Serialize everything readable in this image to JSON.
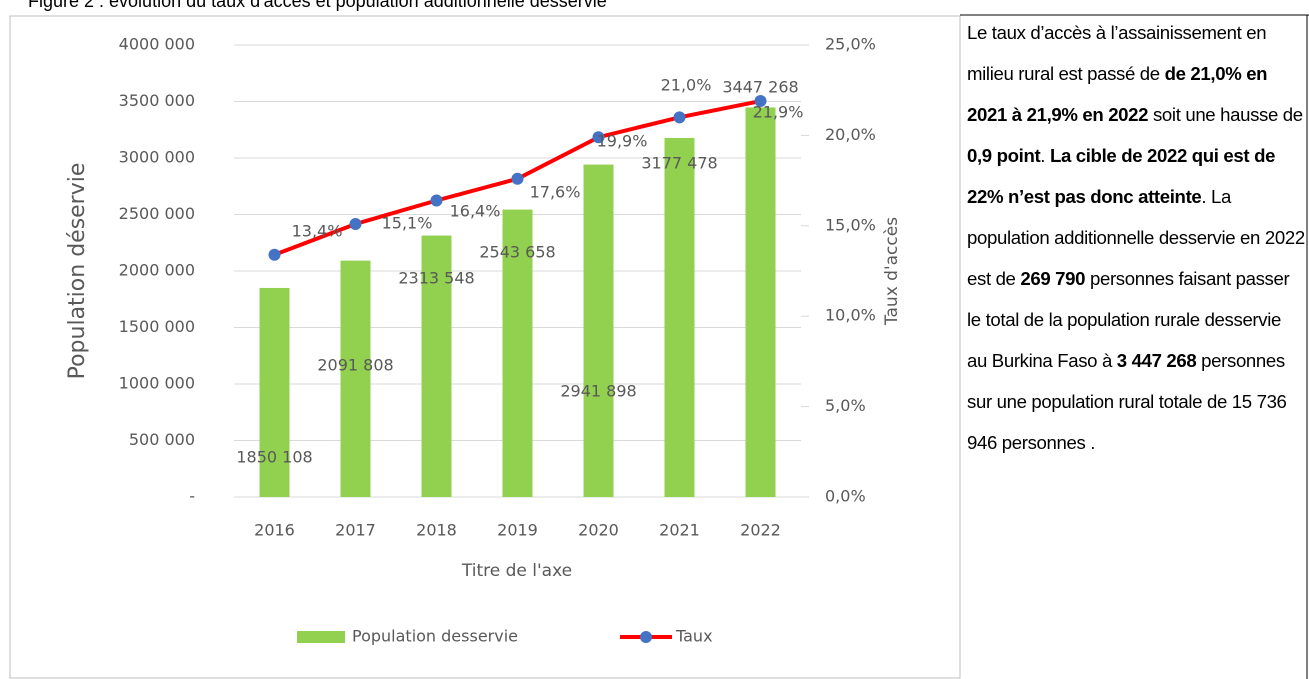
{
  "caption": "Figure 2 : évolution du taux d'accès et population additionnelle desservie",
  "chart_data": {
    "type": "bar-line",
    "y_label": "Population déservie",
    "y2_label": "Taux d'accès",
    "x_label": "Titre de l'axe",
    "categories": [
      "2016",
      "2017",
      "2018",
      "2019",
      "2020",
      "2021",
      "2022"
    ],
    "series": [
      {
        "name": "Population desservie",
        "type": "bar",
        "color": "#92d050",
        "values": [
          1850108,
          2091808,
          2313548,
          2543658,
          2941898,
          3177478,
          3447268
        ],
        "value_labels": [
          "1850 108",
          "2091 808",
          "2313 548",
          "2543 658",
          "2941 898",
          "3177 478",
          "3447 268"
        ]
      },
      {
        "name": "Taux",
        "type": "line",
        "axis": "y2",
        "color": "#ff0000",
        "marker_color": "#4472c4",
        "values": [
          13.4,
          15.1,
          16.4,
          17.6,
          19.9,
          21.0,
          21.9
        ],
        "value_labels": [
          "13,4%",
          "15,1%",
          "16,4%",
          "17,6%",
          "19,9%",
          "21,0%",
          "21,9%"
        ]
      }
    ],
    "ylim": [
      0,
      4000000
    ],
    "yticks": [
      {
        "value": 0,
        "label": "-"
      },
      {
        "value": 500000,
        "label": "500 000"
      },
      {
        "value": 1000000,
        "label": "1000 000"
      },
      {
        "value": 1500000,
        "label": "1500 000"
      },
      {
        "value": 2000000,
        "label": "2000 000"
      },
      {
        "value": 2500000,
        "label": "2500 000"
      },
      {
        "value": 3000000,
        "label": "3000 000"
      },
      {
        "value": 3500000,
        "label": "3500 000"
      },
      {
        "value": 4000000,
        "label": "4000 000"
      }
    ],
    "y2lim": [
      0,
      25
    ],
    "y2ticks": [
      {
        "value": 0,
        "label": "0,0%"
      },
      {
        "value": 5,
        "label": "5,0%"
      },
      {
        "value": 10,
        "label": "10,0%"
      },
      {
        "value": 15,
        "label": "15,0%"
      },
      {
        "value": 20,
        "label": "20,0%"
      },
      {
        "value": 25,
        "label": "25,0%"
      }
    ],
    "grid": true,
    "legend": "bottom"
  },
  "text": {
    "paragraph": [
      {
        "text": "Le taux d’accès à l’assainissement en milieu rural est passé de ",
        "bold": false
      },
      {
        "text": "de 21,0% en 2021 à 21,9% en 2022",
        "bold": true
      },
      {
        "text": " soit une hausse de ",
        "bold": false
      },
      {
        "text": "0,9 point",
        "bold": true
      },
      {
        "text": ". ",
        "bold": false
      },
      {
        "text": "La cible de 2022 qui est de 22% n’est pas donc atteinte",
        "bold": true
      },
      {
        "text": ". La population additionnelle desservie en 2022 est de ",
        "bold": false
      },
      {
        "text": "269 790",
        "bold": true
      },
      {
        "text": " personnes faisant passer le total de la population rurale desservie au Burkina Faso à ",
        "bold": false
      },
      {
        "text": "3 447 268",
        "bold": true
      },
      {
        "text": "  personnes sur une population rural totale de 15 736 946  personnes .",
        "bold": false
      }
    ]
  }
}
